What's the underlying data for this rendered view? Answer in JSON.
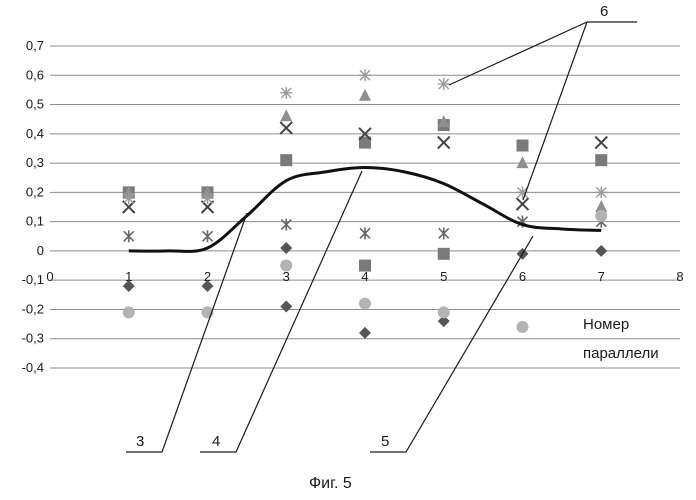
{
  "chart_data": {
    "type": "scatter",
    "xlim": [
      0,
      8
    ],
    "ylim": [
      -0.4,
      0.7
    ],
    "x_ticks": [
      "0",
      "1",
      "2",
      "3",
      "4",
      "5",
      "6",
      "7",
      "8"
    ],
    "y_ticks": [
      "0,7",
      "0,6",
      "0,5",
      "0,4",
      "0,3",
      "0,2",
      "0,1",
      "0",
      "-0,1",
      "-0,2",
      "-0,3",
      "-0,4"
    ],
    "grid": "horizontal",
    "xlabel_line1": "Номер",
    "xlabel_line2": "параллели",
    "series": [
      {
        "marker": "diamond",
        "color": "#555555",
        "points": [
          [
            1,
            -0.12
          ],
          [
            2,
            -0.12
          ],
          [
            3,
            0.01
          ],
          [
            3,
            -0.19
          ],
          [
            4,
            -0.28
          ],
          [
            5,
            -0.24
          ],
          [
            6,
            -0.01
          ],
          [
            7,
            0.0
          ]
        ]
      },
      {
        "marker": "square",
        "color": "#7a7a7a",
        "points": [
          [
            1,
            0.2
          ],
          [
            2,
            0.2
          ],
          [
            3,
            0.31
          ],
          [
            4,
            0.37
          ],
          [
            4,
            -0.05
          ],
          [
            5,
            0.43
          ],
          [
            5,
            -0.01
          ],
          [
            6,
            0.36
          ],
          [
            7,
            0.31
          ]
        ]
      },
      {
        "marker": "triangle",
        "color": "#8f8f8f",
        "points": [
          [
            1,
            0.2
          ],
          [
            2,
            0.2
          ],
          [
            3,
            0.46
          ],
          [
            4,
            0.53
          ],
          [
            5,
            0.44
          ],
          [
            6,
            0.3
          ],
          [
            7,
            0.15
          ]
        ]
      },
      {
        "marker": "x",
        "color": "#444444",
        "points": [
          [
            1,
            0.15
          ],
          [
            2,
            0.15
          ],
          [
            3,
            0.42
          ],
          [
            4,
            0.4
          ],
          [
            5,
            0.37
          ],
          [
            6,
            0.16
          ],
          [
            7,
            0.37
          ]
        ]
      },
      {
        "marker": "star",
        "color": "#666666",
        "points": [
          [
            1,
            0.05
          ],
          [
            2,
            0.05
          ],
          [
            3,
            0.09
          ],
          [
            4,
            0.06
          ],
          [
            5,
            0.06
          ],
          [
            6,
            0.1
          ],
          [
            7,
            0.1
          ]
        ]
      },
      {
        "marker": "circle",
        "color": "#b3b3b3",
        "points": [
          [
            1,
            -0.21
          ],
          [
            2,
            -0.21
          ],
          [
            3,
            -0.05
          ],
          [
            4,
            -0.18
          ],
          [
            5,
            -0.21
          ],
          [
            6,
            -0.26
          ],
          [
            7,
            0.12
          ]
        ]
      },
      {
        "marker": "asterisk",
        "color": "#9a9a9a",
        "points": [
          [
            1,
            0.18
          ],
          [
            2,
            0.18
          ],
          [
            3,
            0.54
          ],
          [
            4,
            0.6
          ],
          [
            5,
            0.57
          ],
          [
            6,
            0.2
          ],
          [
            7,
            0.2
          ]
        ]
      }
    ],
    "curve": {
      "x": [
        1,
        1.5,
        2,
        2.5,
        3,
        3.5,
        4,
        4.5,
        5,
        5.5,
        6,
        6.5,
        7
      ],
      "y": [
        0,
        0,
        0.01,
        0.12,
        0.24,
        0.27,
        0.285,
        0.27,
        0.23,
        0.16,
        0.09,
        0.075,
        0.07
      ]
    }
  },
  "callouts": {
    "label_3": "3",
    "label_4": "4",
    "label_5": "5",
    "label_6": "6"
  },
  "caption": "Фиг. 5"
}
